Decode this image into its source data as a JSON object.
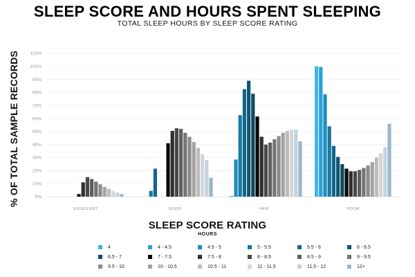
{
  "chart_data": {
    "type": "bar",
    "title": "SLEEP SCORE AND HOURS SPENT SLEEPING",
    "subtitle": "TOTAL SLEEP HOURS BY SLEEP SCORE RATING",
    "xlabel": "SLEEP SCORE RATING",
    "ylabel": "% OF TOTAL SAMPLE RECORDS",
    "legend_title": "HOURS",
    "ylim": [
      0,
      110
    ],
    "yticks": [
      "0%",
      "10%",
      "20%",
      "30%",
      "40%",
      "50%",
      "60%",
      "70%",
      "80%",
      "90%",
      "100%",
      "110%"
    ],
    "grid": true,
    "legend_position": "bottom",
    "categories": [
      "EXCELLENT",
      "GOOD",
      "FAIR",
      "POOR"
    ],
    "series": [
      {
        "name": "4",
        "color": "#41b6e6",
        "values": [
          0,
          0,
          0,
          100
        ]
      },
      {
        "name": "4 - 4.5",
        "color": "#2aa1d3",
        "values": [
          0,
          0,
          0.5,
          99.5
        ]
      },
      {
        "name": "4.5 - 5",
        "color": "#1d8cbb",
        "values": [
          0,
          0,
          28.5,
          78.5
        ]
      },
      {
        "name": "5 - 5.5",
        "color": "#1779a3",
        "values": [
          0,
          4.5,
          62.5,
          54
        ]
      },
      {
        "name": "5.5 - 6",
        "color": "#13668a",
        "values": [
          0,
          21.5,
          82.5,
          39
        ]
      },
      {
        "name": "6 - 6.5",
        "color": "#0f5674",
        "values": [
          0,
          0,
          89,
          30.5
        ]
      },
      {
        "name": "6.5 - 7",
        "color": "#0d4a62",
        "values": [
          0,
          0,
          79,
          25
        ]
      },
      {
        "name": "7 - 7.5",
        "color": "#0a0a0a",
        "values": [
          2,
          41,
          61.5,
          21.5
        ]
      },
      {
        "name": "7.5 - 8",
        "color": "#2e2e2e",
        "values": [
          11,
          50.5,
          46,
          19.5
        ]
      },
      {
        "name": "8 - 8.5",
        "color": "#474747",
        "values": [
          15,
          52.5,
          40,
          19.5
        ]
      },
      {
        "name": "8.5 - 9",
        "color": "#5e5e5e",
        "values": [
          13.5,
          52,
          41.5,
          20.5
        ]
      },
      {
        "name": "9 - 9.5",
        "color": "#757575",
        "values": [
          11.5,
          49,
          44,
          22
        ]
      },
      {
        "name": "9.5 - 10",
        "color": "#8c8c8c",
        "values": [
          9.5,
          46,
          46.5,
          24
        ]
      },
      {
        "name": "10 - 10.5",
        "color": "#a3a3a3",
        "values": [
          7.5,
          42,
          49,
          26.5
        ]
      },
      {
        "name": "10.5 - 11",
        "color": "#bcbcbc",
        "values": [
          6,
          37.5,
          50.5,
          30
        ]
      },
      {
        "name": "11 - 11.5",
        "color": "#d6d6d6",
        "values": [
          4.5,
          32.5,
          51.5,
          33.5
        ]
      },
      {
        "name": "11.5 - 12",
        "color": "#c3d3df",
        "values": [
          3,
          28,
          51.5,
          38
        ]
      },
      {
        "name": "12+",
        "color": "#9ab7cc",
        "values": [
          2,
          14.5,
          42.5,
          56
        ]
      }
    ]
  }
}
